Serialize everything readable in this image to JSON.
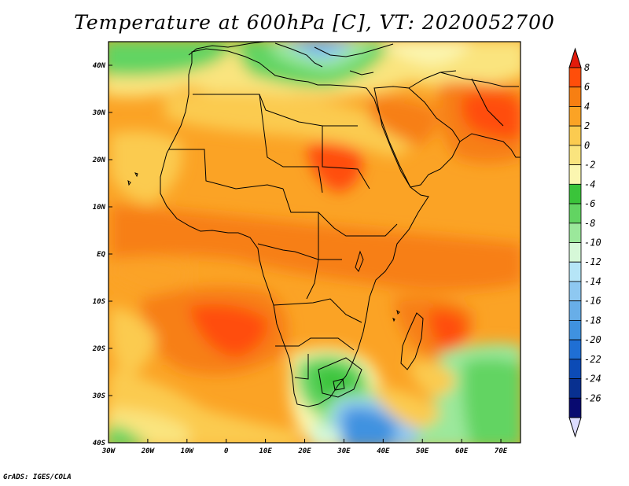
{
  "title": "Temperature at 600hPa [C], VT: 2020052700",
  "footer": "GrADS: IGES/COLA",
  "map": {
    "lon_range": [
      -30,
      75
    ],
    "lat_range": [
      -40,
      45
    ],
    "x_tick_labels": [
      "30W",
      "20W",
      "10W",
      "0",
      "10E",
      "20E",
      "30E",
      "40E",
      "50E",
      "60E",
      "70E"
    ],
    "y_tick_labels": [
      "40N",
      "30N",
      "20N",
      "10N",
      "EQ",
      "10S",
      "20S",
      "30S",
      "40S"
    ]
  },
  "colorbar": {
    "labels": [
      "8",
      "6",
      "4",
      "2",
      "0",
      "-2",
      "-4",
      "-6",
      "-8",
      "-10",
      "-12",
      "-14",
      "-16",
      "-18",
      "-20",
      "-22",
      "-24",
      "-26"
    ],
    "colors": [
      "#e31b0b",
      "#ff4e0a",
      "#f77f12",
      "#fba325",
      "#fbcb50",
      "#fae47e",
      "#fbf6b0",
      "#3ac43a",
      "#62d462",
      "#9be89b",
      "#d6f8d8",
      "#b6e5f7",
      "#8ec8f1",
      "#68aee8",
      "#3f92e0",
      "#1f6fd4",
      "#0c4bb6",
      "#083090",
      "#080a70",
      "#ddddff"
    ]
  }
}
